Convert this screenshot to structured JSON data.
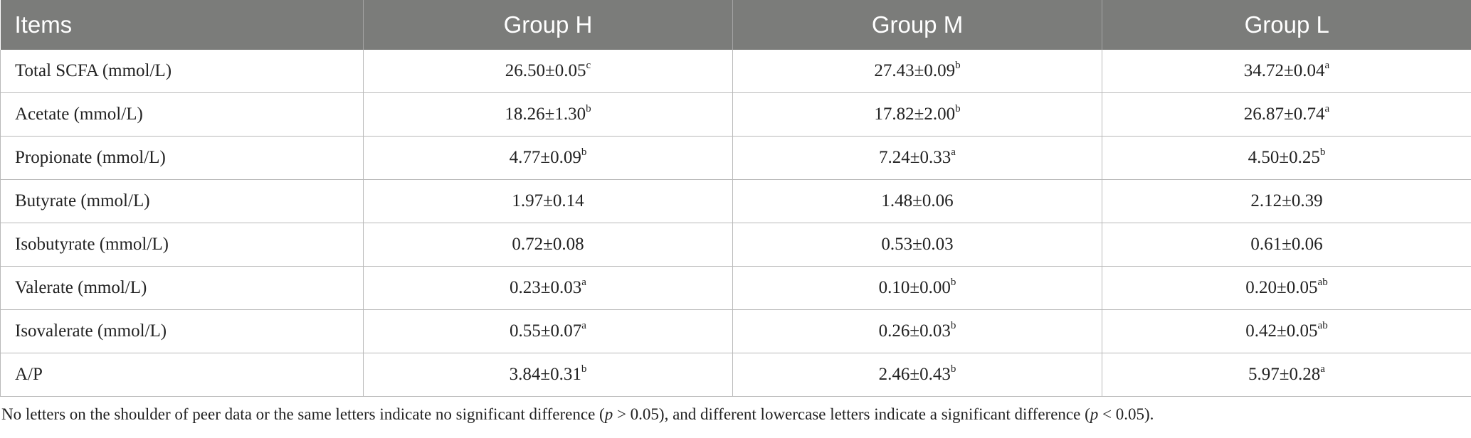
{
  "table": {
    "headers": [
      "Items",
      "Group H",
      "Group M",
      "Group L"
    ],
    "rows": [
      {
        "item": "Total SCFA (mmol/L)",
        "cells": [
          {
            "v": "26.50±0.05",
            "s": "c"
          },
          {
            "v": "27.43±0.09",
            "s": "b"
          },
          {
            "v": "34.72±0.04",
            "s": "a"
          }
        ]
      },
      {
        "item": "Acetate (mmol/L)",
        "cells": [
          {
            "v": "18.26±1.30",
            "s": "b"
          },
          {
            "v": "17.82±2.00",
            "s": "b"
          },
          {
            "v": "26.87±0.74",
            "s": "a"
          }
        ]
      },
      {
        "item": "Propionate (mmol/L)",
        "cells": [
          {
            "v": "4.77±0.09",
            "s": "b"
          },
          {
            "v": "7.24±0.33",
            "s": "a"
          },
          {
            "v": "4.50±0.25",
            "s": "b"
          }
        ]
      },
      {
        "item": "Butyrate (mmol/L)",
        "cells": [
          {
            "v": "1.97±0.14",
            "s": ""
          },
          {
            "v": "1.48±0.06",
            "s": ""
          },
          {
            "v": "2.12±0.39",
            "s": ""
          }
        ]
      },
      {
        "item": "Isobutyrate (mmol/L)",
        "cells": [
          {
            "v": "0.72±0.08",
            "s": ""
          },
          {
            "v": "0.53±0.03",
            "s": ""
          },
          {
            "v": "0.61±0.06",
            "s": ""
          }
        ]
      },
      {
        "item": "Valerate (mmol/L)",
        "cells": [
          {
            "v": "0.23±0.03",
            "s": "a"
          },
          {
            "v": "0.10±0.00",
            "s": "b"
          },
          {
            "v": "0.20±0.05",
            "s": "ab"
          }
        ]
      },
      {
        "item": "Isovalerate (mmol/L)",
        "cells": [
          {
            "v": "0.55±0.07",
            "s": "a"
          },
          {
            "v": "0.26±0.03",
            "s": "b"
          },
          {
            "v": "0.42±0.05",
            "s": "ab"
          }
        ]
      },
      {
        "item": "A/P",
        "cells": [
          {
            "v": "3.84±0.31",
            "s": "b"
          },
          {
            "v": "2.46±0.43",
            "s": "b"
          },
          {
            "v": "5.97±0.28",
            "s": "a"
          }
        ]
      }
    ]
  },
  "footnote": {
    "part1": "No letters on the shoulder of peer data or the same letters indicate no significant difference (",
    "p1": "p",
    "part2": " > 0.05), and different lowercase letters indicate a significant difference (",
    "p2": "p",
    "part3": " < 0.05)."
  }
}
